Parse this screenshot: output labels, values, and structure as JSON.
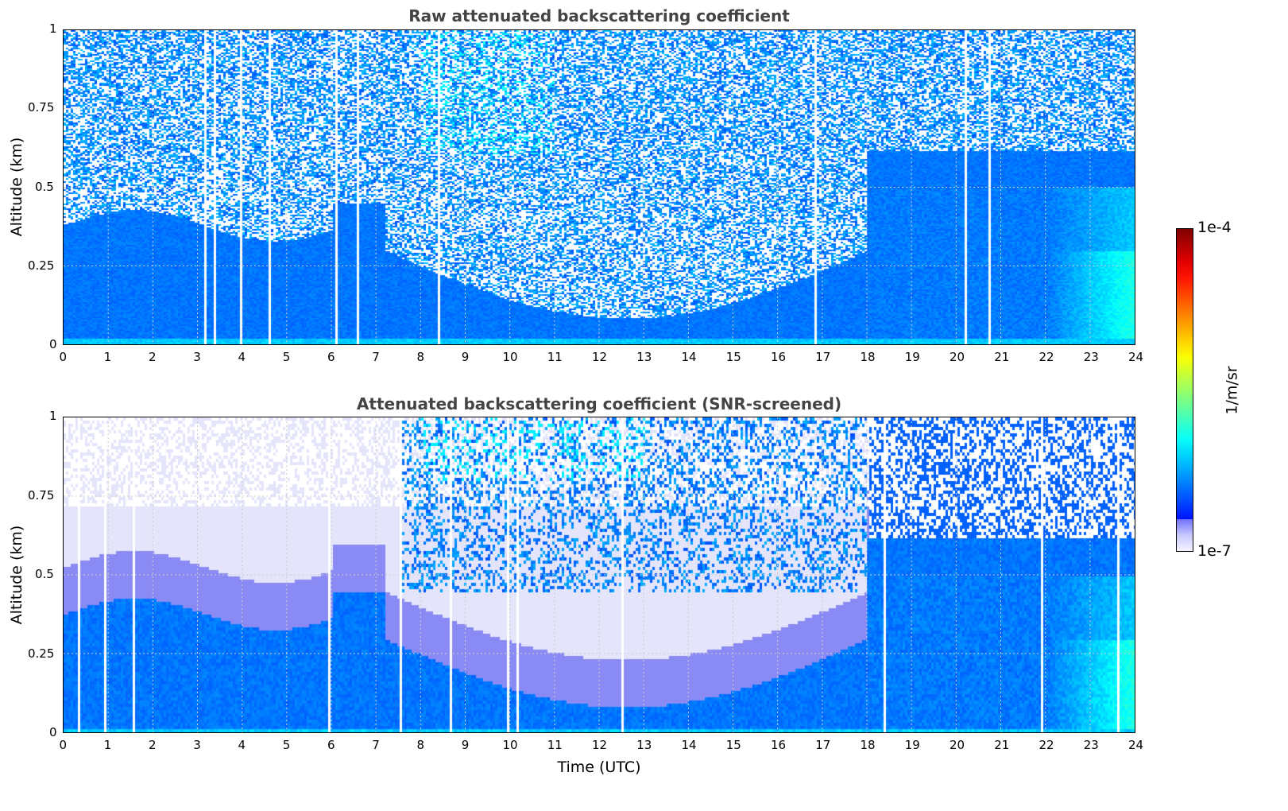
{
  "chart_data": [
    {
      "type": "heatmap",
      "title": "Raw attenuated backscattering coefficient",
      "xlabel": "",
      "ylabel": "Altitude (km)",
      "xlim": [
        0,
        24
      ],
      "ylim": [
        0,
        1
      ],
      "x_ticks": [
        "0",
        "1",
        "2",
        "3",
        "4",
        "5",
        "6",
        "7",
        "8",
        "9",
        "10",
        "11",
        "12",
        "13",
        "14",
        "15",
        "16",
        "17",
        "18",
        "19",
        "20",
        "21",
        "22",
        "23",
        "24"
      ],
      "y_ticks": [
        "0",
        "0.25",
        "0.5",
        "0.75",
        "1"
      ],
      "grid": true
    },
    {
      "type": "heatmap",
      "title": "Attenuated backscattering coefficient (SNR-screened)",
      "xlabel": "Time (UTC)",
      "ylabel": "Altitude (km)",
      "xlim": [
        0,
        24
      ],
      "ylim": [
        0,
        1
      ],
      "x_ticks": [
        "0",
        "1",
        "2",
        "3",
        "4",
        "5",
        "6",
        "7",
        "8",
        "9",
        "10",
        "11",
        "12",
        "13",
        "14",
        "15",
        "16",
        "17",
        "18",
        "19",
        "20",
        "21",
        "22",
        "23",
        "24"
      ],
      "y_ticks": [
        "0",
        "0.25",
        "0.5",
        "0.75",
        "1"
      ],
      "grid": true
    }
  ],
  "colorbar": {
    "label": "1/m/sr",
    "min_label": "1e-7",
    "max_label": "1e-4",
    "scale": "log",
    "colormap": "jet"
  }
}
